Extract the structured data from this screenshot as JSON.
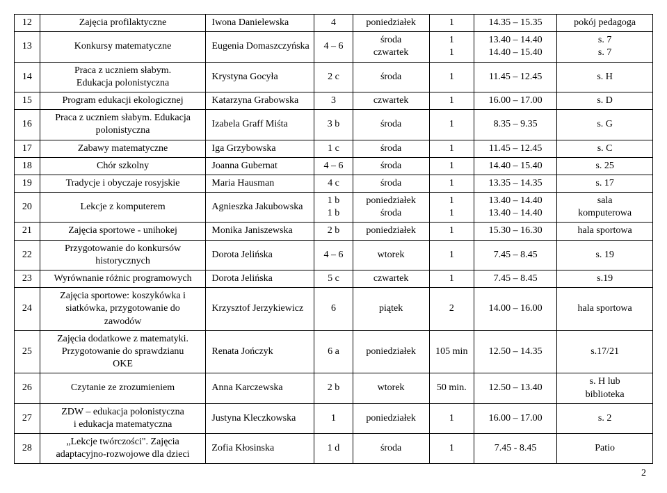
{
  "table": {
    "rows": [
      {
        "num": "12",
        "name": "Zajęcia profilaktyczne",
        "teacher": "Iwona Danielewska",
        "group": "4",
        "day": "poniedziałek",
        "count": "1",
        "time": "14.35 – 15.35",
        "room": "pokój pedagoga"
      },
      {
        "num": "13",
        "name": "Konkursy matematyczne",
        "teacher": "Eugenia Domaszczyńska",
        "group": "4 – 6",
        "day": "środa\nczwartek",
        "count": "1\n1",
        "time": "13.40 – 14.40\n14.40 – 15.40",
        "room": "s. 7\ns. 7"
      },
      {
        "num": "14",
        "name": "Praca z uczniem słabym.\nEdukacja polonistyczna",
        "teacher": "Krystyna Gocyła",
        "group": "2 c",
        "day": "środa",
        "count": "1",
        "time": "11.45 – 12.45",
        "room": "s. H"
      },
      {
        "num": "15",
        "name": "Program edukacji ekologicznej",
        "teacher": "Katarzyna Grabowska",
        "group": "3",
        "day": "czwartek",
        "count": "1",
        "time": "16.00 – 17.00",
        "room": "s. D"
      },
      {
        "num": "16",
        "name": "Praca z uczniem słabym. Edukacja\npolonistyczna",
        "teacher": "Izabela Graff Miśta",
        "group": "3 b",
        "day": "środa",
        "count": "1",
        "time": "8.35 – 9.35",
        "room": "s. G"
      },
      {
        "num": "17",
        "name": "Zabawy matematyczne",
        "teacher": "Iga Grzybowska",
        "group": "1 c",
        "day": "środa",
        "count": "1",
        "time": "11.45 – 12.45",
        "room": "s. C"
      },
      {
        "num": "18",
        "name": "Chór szkolny",
        "teacher": "Joanna Gubernat",
        "group": "4 – 6",
        "day": "środa",
        "count": "1",
        "time": "14.40 – 15.40",
        "room": "s. 25"
      },
      {
        "num": "19",
        "name": "Tradycje i obyczaje rosyjskie",
        "teacher": "Maria Hausman",
        "group": "4 c",
        "day": "środa",
        "count": "1",
        "time": "13.35 – 14.35",
        "room": "s. 17"
      },
      {
        "num": "20",
        "name": "Lekcje z komputerem",
        "teacher": "Agnieszka Jakubowska",
        "group": "1 b\n1 b",
        "day": "poniedziałek\nśroda",
        "count": "1\n1",
        "time": "13.40 – 14.40\n13.40 – 14.40",
        "room": "sala\nkomputerowa"
      },
      {
        "num": "21",
        "name": "Zajęcia sportowe - unihokej",
        "teacher": "Monika Janiszewska",
        "group": "2 b",
        "day": "poniedziałek",
        "count": "1",
        "time": "15.30 – 16.30",
        "room": "hala sportowa"
      },
      {
        "num": "22",
        "name": "Przygotowanie do konkursów\nhistorycznych",
        "teacher": "Dorota Jelińska",
        "group": "4 – 6",
        "day": "wtorek",
        "count": "1",
        "time": "7.45 – 8.45",
        "room": "s. 19"
      },
      {
        "num": "23",
        "name": "Wyrównanie różnic programowych",
        "teacher": "Dorota Jelińska",
        "group": "5 c",
        "day": "czwartek",
        "count": "1",
        "time": "7.45 – 8.45",
        "room": "s.19"
      },
      {
        "num": "24",
        "name": "Zajęcia sportowe: koszykówka i\nsiatkówka, przygotowanie do\nzawodów",
        "teacher": "Krzysztof Jerzykiewicz",
        "group": "6",
        "day": "piątek",
        "count": "2",
        "time": "14.00 – 16.00",
        "room": "hala sportowa"
      },
      {
        "num": "25",
        "name": "Zajęcia dodatkowe z matematyki.\nPrzygotowanie do sprawdzianu\nOKE",
        "teacher": "Renata Jończyk",
        "group": "6 a",
        "day": "poniedziałek",
        "count": "105 min",
        "time": "12.50 – 14.35",
        "room": "s.17/21"
      },
      {
        "num": "26",
        "name": "Czytanie ze zrozumieniem",
        "teacher": "Anna Karczewska",
        "group": "2 b",
        "day": "wtorek",
        "count": "50 min.",
        "time": "12.50 – 13.40",
        "room": "s. H lub\nbiblioteka"
      },
      {
        "num": "27",
        "name": "ZDW – edukacja  polonistyczna\ni  edukacja  matematyczna",
        "teacher": "Justyna Kleczkowska",
        "group": "1",
        "day": "poniedziałek",
        "count": "1",
        "time": "16.00 – 17.00",
        "room": "s. 2"
      },
      {
        "num": "28",
        "name": "„Lekcje twórczości\". Zajęcia\nadaptacyjno-rozwojowe dla dzieci",
        "teacher": "Zofia Kłosinska",
        "group": "1 d",
        "day": "środa",
        "count": "1",
        "time": "7.45  -  8.45",
        "room": "Patio"
      }
    ]
  },
  "pageNumber": "2"
}
